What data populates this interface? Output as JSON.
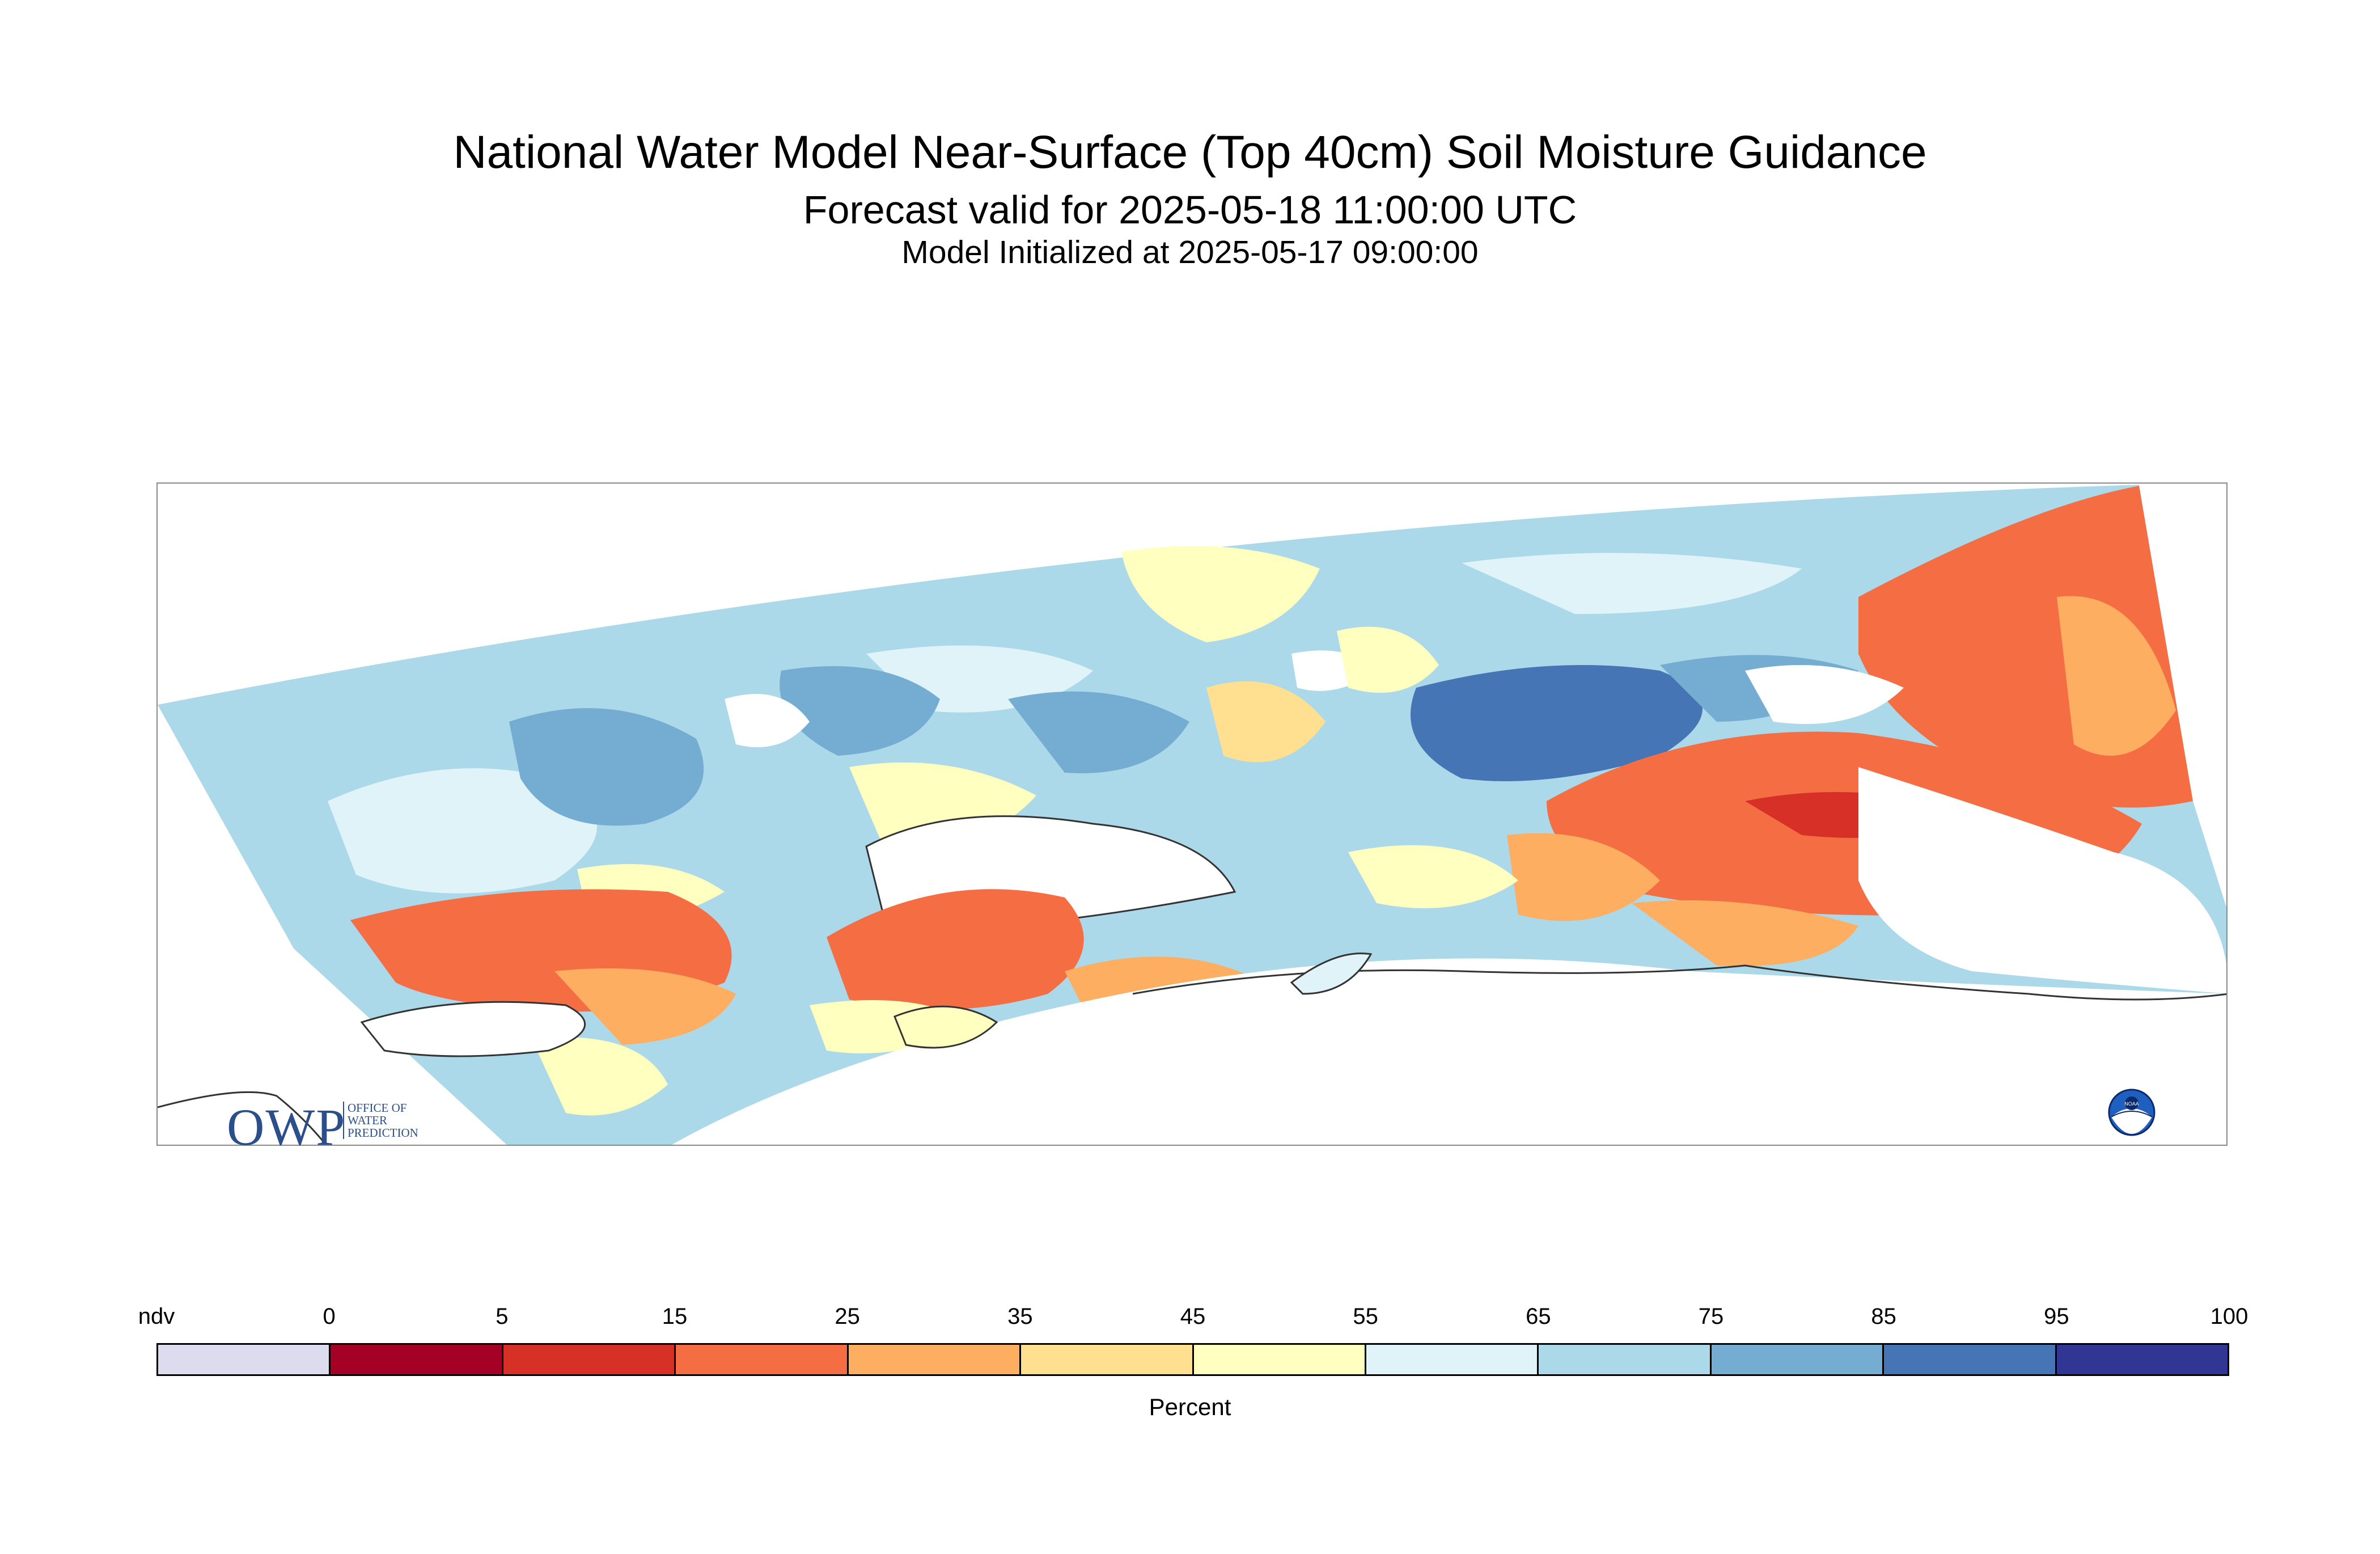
{
  "title": "National Water Model Near-Surface (Top 40cm) Soil Moisture Guidance",
  "forecast_valid": "Forecast valid for 2025-05-18 11:00:00 UTC",
  "model_init": "Model Initialized at 2025-05-17 09:00:00",
  "logo_owp": {
    "abbr": "OWP",
    "line1": "OFFICE OF",
    "line2": "WATER",
    "line3": "PREDICTION"
  },
  "logo_noaa": "NOAA",
  "legend": {
    "label": "Percent",
    "ticks": [
      "ndv",
      "0",
      "5",
      "15",
      "25",
      "35",
      "45",
      "55",
      "65",
      "75",
      "85",
      "95",
      "100"
    ],
    "colors": [
      "#dcdcee",
      "#a50026",
      "#d73027",
      "#f46d43",
      "#fdae61",
      "#fee090",
      "#ffffbf",
      "#e0f3f8",
      "#abd9e9",
      "#74add1",
      "#4575b4",
      "#313695"
    ]
  },
  "map_colors": {
    "very_wet": "#4575b4",
    "wet": "#74add1",
    "moist": "#abd9e9",
    "light_moist": "#e0f3f8",
    "neutral": "#ffffbf",
    "slightly_dry": "#fee090",
    "dry": "#fdae61",
    "drier": "#f46d43",
    "very_dry": "#d73027",
    "extreme_dry": "#a50026",
    "coastline": "#333333"
  }
}
